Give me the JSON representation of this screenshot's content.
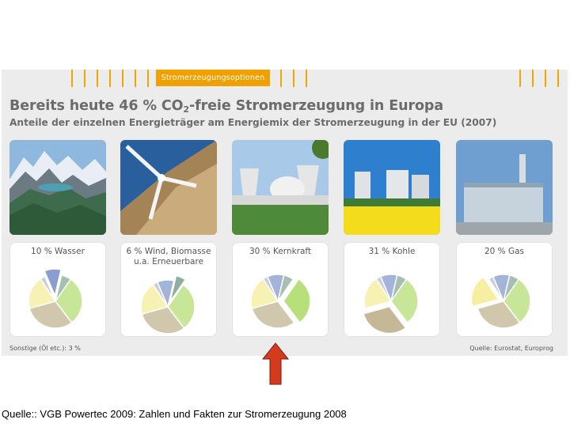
{
  "header": {
    "tab_label": "Stromerzeugungsoptionen",
    "title_prefix": "Bereits heute 46 % CO",
    "title_sub": "2",
    "title_suffix": "-freie Stromerzeugung in Europa",
    "subtitle": "Anteile der einzelnen Energieträger am Energiemix der Stromerzeugung in der EU (2007)"
  },
  "photos": [
    {
      "name": "mountain-lake-photo"
    },
    {
      "name": "wind-turbine-photo"
    },
    {
      "name": "nuclear-plant-photo"
    },
    {
      "name": "coal-plant-rapeseed-photo"
    },
    {
      "name": "gas-plant-photo"
    }
  ],
  "colors": {
    "orange": "#f0a000",
    "slide_bg": "#ececec",
    "wasser": "#8a9fd0",
    "wind": "#8fae9e",
    "kern": "#b8e07a",
    "kohle": "#c4b896",
    "gas": "#f6eea0",
    "arrow": "#d33a1e"
  },
  "chart_data": {
    "type": "pie",
    "title": "Bereits heute 46 % CO2-freie Stromerzeugung in Europa",
    "subtitle": "Anteile der einzelnen Energieträger am Energiemix der Stromerzeugung in der EU (2007)",
    "categories": [
      "Wasser",
      "Wind, Biomasse u.a. Erneuerbare",
      "Kernkraft",
      "Kohle",
      "Gas",
      "Sonstige (Öl etc.)"
    ],
    "values": [
      10,
      6,
      30,
      31,
      20,
      3
    ],
    "panels": [
      {
        "label": "10 % Wasser",
        "highlight": 0
      },
      {
        "label": "6 % Wind, Biomasse\nu.a. Erneuerbare",
        "highlight": 1
      },
      {
        "label": "30 % Kernkraft",
        "highlight": 2
      },
      {
        "label": "31 % Kohle",
        "highlight": 3
      },
      {
        "label": "20 % Gas",
        "highlight": 4
      }
    ]
  },
  "footer": {
    "note_left": "Sonstige (Öl etc.): 3 %",
    "note_right": "Quelle: Eurostat, Europrog"
  },
  "caption": "Quelle:: VGB Powertec 2009: Zahlen und Fakten zur Stromerzeugung 2008"
}
